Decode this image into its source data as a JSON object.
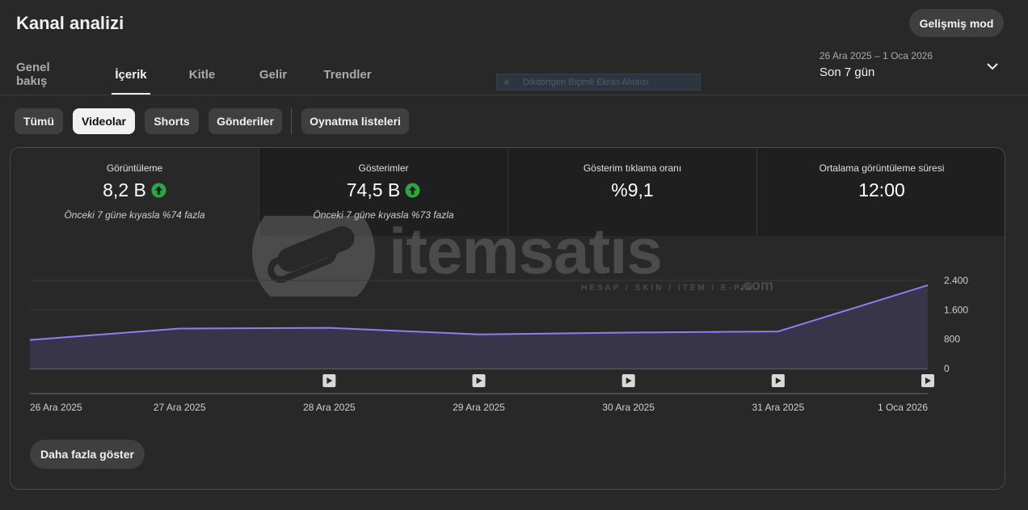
{
  "header": {
    "title": "Kanal analizi",
    "advanced_mode_label": "Gelişmiş mod"
  },
  "tabs": [
    {
      "label": "Genel bakış",
      "active": false
    },
    {
      "label": "İçerik",
      "active": true
    },
    {
      "label": "Kitle",
      "active": false
    },
    {
      "label": "Gelir",
      "active": false
    },
    {
      "label": "Trendler",
      "active": false
    }
  ],
  "date_range": {
    "range_text": "26 Ara 2025 – 1 Oca 2026",
    "period_label": "Son 7 gün",
    "icon": "chevron-down-icon"
  },
  "ghost_tooltip": "Dikdörtgen Biçimli Ekran Alıntısı",
  "filters": {
    "chips": [
      {
        "label": "Tümü",
        "active": false
      },
      {
        "label": "Videolar",
        "active": true
      },
      {
        "label": "Shorts",
        "active": false
      },
      {
        "label": "Gönderiler",
        "active": false
      }
    ],
    "playlists_label": "Oynatma listeleri"
  },
  "metrics": [
    {
      "label": "Görüntüleme",
      "value": "8,2 B",
      "trend": "up",
      "comparison": "Önceki 7 güne kıyasla %74 fazla"
    },
    {
      "label": "Gösterimler",
      "value": "74,5 B",
      "trend": "up",
      "comparison": "Önceki 7 güne kıyasla %73 fazla"
    },
    {
      "label": "Gösterim tıklama oranı",
      "value": "%9,1",
      "trend": "",
      "comparison": ""
    },
    {
      "label": "Ortalama görüntüleme süresi",
      "value": "12:00",
      "trend": "",
      "comparison": ""
    }
  ],
  "watermark": {
    "text": "itemsatıs",
    "subtext": "HESAP / SKIN / ITEM / E-PIN",
    "suffix": ".com"
  },
  "chart_data": {
    "type": "area",
    "x": [
      "26 Ara 2025",
      "27 Ara 2025",
      "28 Ara 2025",
      "29 Ara 2025",
      "30 Ara 2025",
      "31 Ara 2025",
      "1 Oca 2026"
    ],
    "series": [
      {
        "values": [
          780,
          1090,
          1110,
          930,
          980,
          1010,
          2270
        ]
      }
    ],
    "y_ticks": [
      2400,
      1600,
      800,
      0
    ],
    "y_tick_labels": [
      "2.400",
      "1.600",
      "800",
      "0"
    ],
    "ylim": [
      0,
      2400
    ],
    "y_axis_side": "right",
    "video_markers_at": [
      "28 Ara 2025",
      "29 Ara 2025",
      "30 Ara 2025",
      "31 Ara 2025",
      "1 Oca 2026"
    ],
    "line_color": "#8b80f0",
    "fill_color": "#3b3650",
    "grid": true
  },
  "more_button_label": "Daha fazla göster",
  "colors": {
    "background": "#282828",
    "up_badge": "#2ba640",
    "active_chip": "#f1f1f1"
  }
}
